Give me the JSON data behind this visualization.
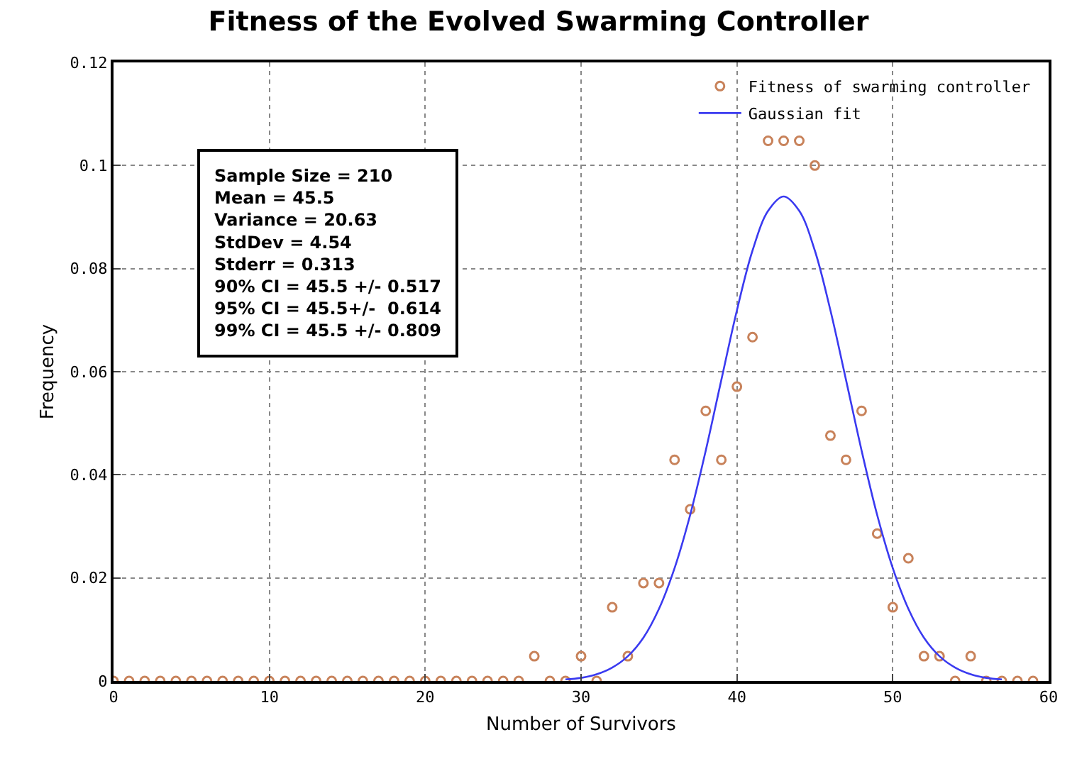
{
  "chart_data": {
    "type": "scatter",
    "title": "Fitness of the Evolved Swarming Controller",
    "xlabel": "Number of Survivors",
    "ylabel": "Frequency",
    "series": [
      {
        "name": "Fitness of swarming controller",
        "marker": "circle",
        "color": "#c8825a",
        "x": [
          0,
          1,
          2,
          3,
          4,
          5,
          6,
          7,
          8,
          9,
          10,
          11,
          12,
          13,
          14,
          15,
          16,
          17,
          18,
          19,
          20,
          21,
          22,
          23,
          24,
          25,
          26,
          27,
          28,
          29,
          30,
          31,
          32,
          33,
          34,
          35,
          36,
          37,
          38,
          39,
          40,
          41,
          42,
          43,
          44,
          45,
          46,
          47,
          48,
          49,
          50,
          51,
          52,
          53,
          54,
          55,
          56,
          57,
          58,
          59
        ],
        "values": [
          0,
          0,
          0,
          0,
          0,
          0,
          0,
          0,
          0,
          0,
          0,
          0,
          0,
          0,
          0,
          0,
          0,
          0,
          0,
          0,
          0,
          0,
          0,
          0,
          0,
          0,
          0,
          0.0048,
          0,
          0,
          0.0048,
          0,
          0.0143,
          0.0048,
          0.019,
          0.019,
          0.0429,
          0.0333,
          0.0524,
          0.0429,
          0.0571,
          0.0667,
          0.1048,
          0.1048,
          0.1048,
          0.1,
          0.0476,
          0.0429,
          0.0524,
          0.0286,
          0.0143,
          0.0238,
          0.0048,
          0.0048,
          0,
          0.0048,
          0,
          0,
          0,
          0
        ]
      },
      {
        "name": "Gaussian fit",
        "type": "line",
        "marker": "none",
        "line_style": "solid",
        "color": "#3a3af0",
        "x": [
          29,
          30,
          31,
          32,
          33,
          34,
          35,
          36,
          37,
          38,
          39,
          40,
          41,
          42,
          43,
          44,
          45,
          46,
          47,
          48,
          49,
          50,
          51,
          52,
          53,
          54,
          55,
          56,
          57
        ],
        "values": [
          0.0003,
          0.0006,
          0.0013,
          0.0026,
          0.0048,
          0.0084,
          0.014,
          0.0219,
          0.0322,
          0.0447,
          0.0584,
          0.0719,
          0.0835,
          0.0912,
          0.094,
          0.0912,
          0.0835,
          0.0719,
          0.0584,
          0.0447,
          0.0322,
          0.0219,
          0.014,
          0.0084,
          0.0048,
          0.0026,
          0.0013,
          0.0006,
          0.0003
        ]
      }
    ],
    "xlim": [
      0,
      60
    ],
    "xticks": [
      0,
      10,
      20,
      30,
      40,
      50,
      60
    ],
    "ylim": [
      0,
      0.12
    ],
    "yticks": [
      0,
      0.02,
      0.04,
      0.06,
      0.08,
      0.1,
      0.12
    ],
    "grid": true,
    "legend": "top right",
    "annotations": [
      "Sample Size = 210\nMean = 45.5\nVariance = 20.63\nStdDev = 4.54\nStderr = 0.313\n90% CI = 45.5 +/- 0.517\n95% CI = 45.5+/-  0.614\n99% CI = 45.5 +/- 0.809"
    ]
  }
}
